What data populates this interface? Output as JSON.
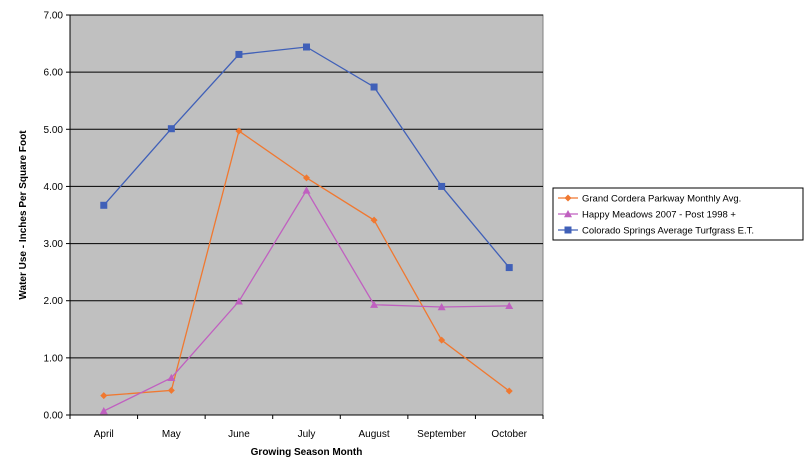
{
  "chart_data": {
    "type": "line",
    "title": "",
    "xlabel": "Growing Season Month",
    "ylabel": "Water Use - Inches Per Square Foot",
    "categories": [
      "April",
      "May",
      "June",
      "July",
      "August",
      "September",
      "October"
    ],
    "ylim": [
      0,
      7
    ],
    "yticks": [
      "0.00",
      "1.00",
      "2.00",
      "3.00",
      "4.00",
      "5.00",
      "6.00",
      "7.00"
    ],
    "grid": "horizontal",
    "plot_background": "#c0c0c0",
    "legend_position": "right",
    "series": [
      {
        "name": "Grand Cordera Parkway Monthly Avg.",
        "color": "#f07830",
        "marker": "diamond",
        "values": [
          0.34,
          0.43,
          4.97,
          4.15,
          3.41,
          1.31,
          0.42
        ]
      },
      {
        "name": "Happy Meadows 2007 - Post 1998 +",
        "color": "#c060c0",
        "marker": "triangle",
        "values": [
          0.07,
          0.65,
          1.99,
          3.93,
          1.93,
          1.89,
          1.91
        ]
      },
      {
        "name": "Colorado Springs Average Turfgrass E.T.",
        "color": "#4060b8",
        "marker": "square",
        "values": [
          3.67,
          5.01,
          6.31,
          6.44,
          5.74,
          4.0,
          2.58
        ]
      }
    ]
  }
}
